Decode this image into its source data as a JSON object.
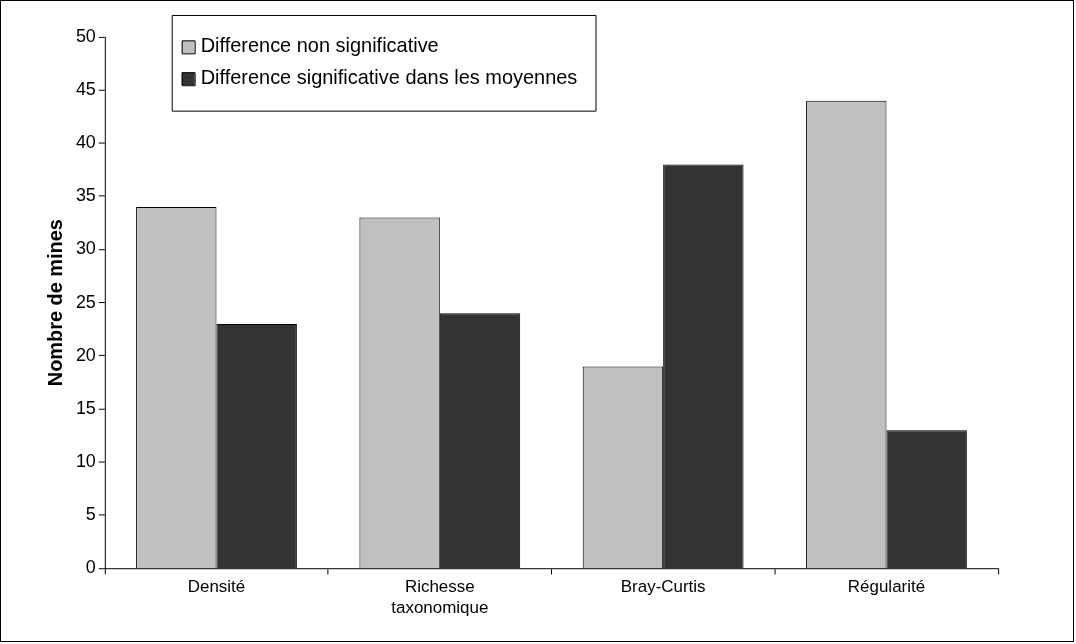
{
  "chart_data": {
    "type": "bar",
    "ylabel": "Nombre de mines",
    "categories": [
      "Densité",
      "Richesse taxonomique",
      "Bray-Curtis",
      "Régularité"
    ],
    "series": [
      {
        "name": "Difference non significative",
        "color": "#c0c0c0",
        "values": [
          34,
          33,
          19,
          44
        ]
      },
      {
        "name": "Difference significative dans les moyennes",
        "color": "#333333",
        "values": [
          23,
          24,
          38,
          13
        ]
      }
    ],
    "ylim": [
      0,
      50
    ],
    "yticks": [
      0,
      5,
      10,
      15,
      20,
      25,
      30,
      35,
      40,
      45,
      50
    ],
    "grid": false,
    "legend": "top left"
  }
}
